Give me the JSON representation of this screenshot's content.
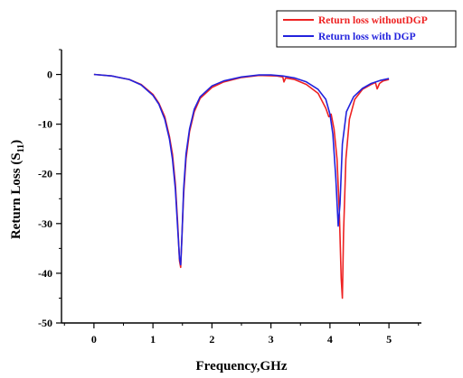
{
  "chart_data": {
    "type": "line",
    "title": "",
    "xlabel": "Frequency,GHz",
    "ylabel": {
      "main": "Return Loss (S",
      "sub": "11",
      "end": ")"
    },
    "xlim": [
      -0.55,
      5.55
    ],
    "ylim": [
      -50,
      5
    ],
    "xticks": [
      0,
      1,
      2,
      3,
      4,
      5
    ],
    "yticks": [
      0,
      -10,
      -20,
      -30,
      -40,
      -50
    ],
    "grid": false,
    "legend_position": "top-right",
    "series": [
      {
        "name": "Return loss withoutDGP",
        "color": "#ee2222",
        "points": [
          [
            0,
            0
          ],
          [
            0.3,
            -0.3
          ],
          [
            0.6,
            -1.0
          ],
          [
            0.8,
            -2.0
          ],
          [
            1.0,
            -4.0
          ],
          [
            1.1,
            -5.8
          ],
          [
            1.2,
            -8.5
          ],
          [
            1.28,
            -12.5
          ],
          [
            1.33,
            -16
          ],
          [
            1.38,
            -22
          ],
          [
            1.42,
            -30
          ],
          [
            1.45,
            -37.5
          ],
          [
            1.47,
            -38.8
          ],
          [
            1.49,
            -33
          ],
          [
            1.52,
            -24
          ],
          [
            1.56,
            -17
          ],
          [
            1.62,
            -11.5
          ],
          [
            1.7,
            -7.5
          ],
          [
            1.8,
            -4.8
          ],
          [
            2.0,
            -2.6
          ],
          [
            2.2,
            -1.5
          ],
          [
            2.5,
            -0.6
          ],
          [
            2.8,
            -0.2
          ],
          [
            3.1,
            -0.3
          ],
          [
            3.2,
            -0.5
          ],
          [
            3.22,
            -1.5
          ],
          [
            3.25,
            -0.7
          ],
          [
            3.4,
            -1.0
          ],
          [
            3.6,
            -2.0
          ],
          [
            3.8,
            -3.8
          ],
          [
            3.93,
            -6.8
          ],
          [
            3.98,
            -8.5
          ],
          [
            4.02,
            -8.0
          ],
          [
            4.07,
            -11
          ],
          [
            4.12,
            -17
          ],
          [
            4.16,
            -28
          ],
          [
            4.19,
            -41
          ],
          [
            4.21,
            -45
          ],
          [
            4.23,
            -32
          ],
          [
            4.27,
            -17
          ],
          [
            4.33,
            -9
          ],
          [
            4.42,
            -5
          ],
          [
            4.55,
            -3
          ],
          [
            4.7,
            -2.0
          ],
          [
            4.77,
            -1.6
          ],
          [
            4.8,
            -2.9
          ],
          [
            4.84,
            -1.8
          ],
          [
            4.9,
            -1.3
          ],
          [
            5.0,
            -1.0
          ]
        ]
      },
      {
        "name": "Return loss with DGP",
        "color": "#2222dd",
        "points": [
          [
            0,
            0
          ],
          [
            0.3,
            -0.3
          ],
          [
            0.6,
            -1.0
          ],
          [
            0.8,
            -2.1
          ],
          [
            1.0,
            -4.2
          ],
          [
            1.1,
            -6.0
          ],
          [
            1.2,
            -9.0
          ],
          [
            1.28,
            -13
          ],
          [
            1.33,
            -17
          ],
          [
            1.38,
            -23
          ],
          [
            1.42,
            -31
          ],
          [
            1.45,
            -37
          ],
          [
            1.47,
            -38.3
          ],
          [
            1.49,
            -33
          ],
          [
            1.52,
            -23
          ],
          [
            1.56,
            -16
          ],
          [
            1.62,
            -11
          ],
          [
            1.7,
            -7.0
          ],
          [
            1.8,
            -4.5
          ],
          [
            2.0,
            -2.3
          ],
          [
            2.2,
            -1.3
          ],
          [
            2.5,
            -0.5
          ],
          [
            2.8,
            -0.1
          ],
          [
            3.0,
            -0.1
          ],
          [
            3.2,
            -0.3
          ],
          [
            3.4,
            -0.7
          ],
          [
            3.6,
            -1.5
          ],
          [
            3.8,
            -3.0
          ],
          [
            3.93,
            -5.0
          ],
          [
            4.0,
            -8.0
          ],
          [
            4.05,
            -12
          ],
          [
            4.1,
            -21
          ],
          [
            4.14,
            -30.5
          ],
          [
            4.17,
            -26
          ],
          [
            4.21,
            -14
          ],
          [
            4.28,
            -7.5
          ],
          [
            4.4,
            -4.5
          ],
          [
            4.55,
            -2.8
          ],
          [
            4.7,
            -1.8
          ],
          [
            4.85,
            -1.2
          ],
          [
            5.0,
            -0.8
          ]
        ]
      }
    ]
  }
}
